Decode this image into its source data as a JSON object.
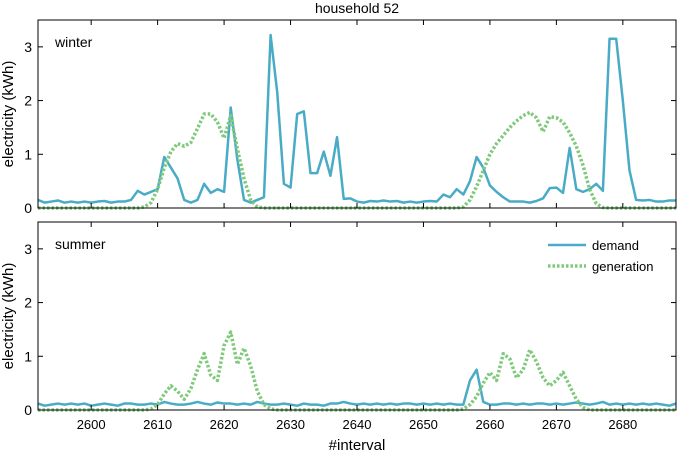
{
  "figure": {
    "title": "household 52",
    "xlabel": "#interval"
  },
  "colors": {
    "demand": "#4aabc6",
    "generation": "#7ec97a",
    "axis": "#000000",
    "background": "#ffffff"
  },
  "chart_data": [
    {
      "type": "line",
      "panel_label": "winter",
      "title": "household 52",
      "xlabel": "",
      "ylabel": "electricity (kWh)",
      "xlim": [
        2592,
        2688
      ],
      "ylim": [
        0,
        3.5
      ],
      "xticks": [
        2600,
        2610,
        2620,
        2630,
        2640,
        2650,
        2660,
        2670,
        2680
      ],
      "yticks": [
        0,
        1,
        2,
        3
      ],
      "legend": "none",
      "series": [
        {
          "name": "demand",
          "style": "solid",
          "x": [
            2592,
            2593,
            2594,
            2595,
            2596,
            2597,
            2598,
            2599,
            2600,
            2601,
            2602,
            2603,
            2604,
            2605,
            2606,
            2607,
            2608,
            2609,
            2610,
            2611,
            2612,
            2613,
            2614,
            2615,
            2616,
            2617,
            2618,
            2619,
            2620,
            2621,
            2622,
            2623,
            2624,
            2625,
            2626,
            2627,
            2628,
            2629,
            2630,
            2631,
            2632,
            2633,
            2634,
            2635,
            2636,
            2637,
            2638,
            2639,
            2640,
            2641,
            2642,
            2643,
            2644,
            2645,
            2646,
            2647,
            2648,
            2649,
            2650,
            2651,
            2652,
            2653,
            2654,
            2655,
            2656,
            2657,
            2658,
            2659,
            2660,
            2661,
            2662,
            2663,
            2664,
            2665,
            2666,
            2667,
            2668,
            2669,
            2670,
            2671,
            2672,
            2673,
            2674,
            2675,
            2676,
            2677,
            2678,
            2679,
            2680,
            2681,
            2682,
            2683,
            2684,
            2685,
            2686,
            2687,
            2688
          ],
          "values": [
            0.15,
            0.1,
            0.12,
            0.14,
            0.1,
            0.12,
            0.1,
            0.12,
            0.1,
            0.12,
            0.13,
            0.1,
            0.12,
            0.12,
            0.15,
            0.32,
            0.25,
            0.3,
            0.35,
            0.95,
            0.75,
            0.55,
            0.15,
            0.1,
            0.15,
            0.45,
            0.28,
            0.35,
            0.3,
            1.87,
            0.9,
            0.15,
            0.1,
            0.15,
            0.2,
            3.22,
            2.15,
            0.45,
            0.38,
            1.75,
            1.8,
            0.65,
            0.65,
            1.05,
            0.6,
            1.32,
            0.17,
            0.18,
            0.12,
            0.1,
            0.13,
            0.12,
            0.14,
            0.12,
            0.13,
            0.1,
            0.12,
            0.1,
            0.12,
            0.13,
            0.12,
            0.25,
            0.2,
            0.35,
            0.25,
            0.5,
            0.95,
            0.75,
            0.42,
            0.3,
            0.2,
            0.12,
            0.12,
            0.12,
            0.1,
            0.13,
            0.18,
            0.37,
            0.38,
            0.28,
            1.12,
            0.35,
            0.3,
            0.35,
            0.45,
            0.32,
            3.15,
            3.15,
            2.0,
            0.7,
            0.15,
            0.14,
            0.15,
            0.12,
            0.12,
            0.14,
            0.14
          ]
        },
        {
          "name": "generation",
          "style": "dotted",
          "x": [
            2592,
            2593,
            2594,
            2595,
            2596,
            2597,
            2598,
            2599,
            2600,
            2601,
            2602,
            2603,
            2604,
            2605,
            2606,
            2607,
            2608,
            2609,
            2610,
            2611,
            2612,
            2613,
            2614,
            2615,
            2616,
            2617,
            2618,
            2619,
            2620,
            2621,
            2622,
            2623,
            2624,
            2625,
            2626,
            2627,
            2628,
            2629,
            2630,
            2631,
            2632,
            2633,
            2634,
            2635,
            2636,
            2637,
            2638,
            2639,
            2640,
            2641,
            2642,
            2643,
            2644,
            2645,
            2646,
            2647,
            2648,
            2649,
            2650,
            2651,
            2652,
            2653,
            2654,
            2655,
            2656,
            2657,
            2658,
            2659,
            2660,
            2661,
            2662,
            2663,
            2664,
            2665,
            2666,
            2667,
            2668,
            2669,
            2670,
            2671,
            2672,
            2673,
            2674,
            2675,
            2676,
            2677,
            2678,
            2679,
            2680,
            2681,
            2682,
            2683,
            2684,
            2685,
            2686,
            2687,
            2688
          ],
          "values": [
            0,
            0,
            0,
            0,
            0,
            0,
            0,
            0,
            0,
            0,
            0,
            0,
            0,
            0,
            0,
            0,
            0.02,
            0.1,
            0.35,
            0.75,
            1.05,
            1.2,
            1.15,
            1.22,
            1.48,
            1.75,
            1.75,
            1.6,
            1.3,
            1.72,
            1.1,
            0.55,
            0.15,
            0.02,
            0,
            0,
            0,
            0,
            0,
            0,
            0,
            0,
            0,
            0,
            0,
            0,
            0,
            0,
            0,
            0,
            0,
            0,
            0,
            0,
            0,
            0,
            0,
            0,
            0,
            0,
            0,
            0,
            0,
            0,
            0.02,
            0.15,
            0.4,
            0.7,
            1.0,
            1.2,
            1.35,
            1.5,
            1.62,
            1.72,
            1.78,
            1.68,
            1.42,
            1.7,
            1.68,
            1.6,
            1.4,
            1.15,
            0.8,
            0.35,
            0.08,
            0.01,
            0,
            0,
            0,
            0,
            0,
            0,
            0,
            0,
            0,
            0,
            0
          ]
        }
      ]
    },
    {
      "type": "line",
      "panel_label": "summer",
      "title": "",
      "xlabel": "#interval",
      "ylabel": "electricity (kWh)",
      "xlim": [
        2592,
        2688
      ],
      "ylim": [
        0,
        3.5
      ],
      "xticks": [
        2600,
        2610,
        2620,
        2630,
        2640,
        2650,
        2660,
        2670,
        2680
      ],
      "yticks": [
        0,
        1,
        2,
        3
      ],
      "legend": "top-right",
      "series": [
        {
          "name": "demand",
          "style": "solid",
          "x": [
            2592,
            2593,
            2594,
            2595,
            2596,
            2597,
            2598,
            2599,
            2600,
            2601,
            2602,
            2603,
            2604,
            2605,
            2606,
            2607,
            2608,
            2609,
            2610,
            2611,
            2612,
            2613,
            2614,
            2615,
            2616,
            2617,
            2618,
            2619,
            2620,
            2621,
            2622,
            2623,
            2624,
            2625,
            2626,
            2627,
            2628,
            2629,
            2630,
            2631,
            2632,
            2633,
            2634,
            2635,
            2636,
            2637,
            2638,
            2639,
            2640,
            2641,
            2642,
            2643,
            2644,
            2645,
            2646,
            2647,
            2648,
            2649,
            2650,
            2651,
            2652,
            2653,
            2654,
            2655,
            2656,
            2657,
            2658,
            2659,
            2660,
            2661,
            2662,
            2663,
            2664,
            2665,
            2666,
            2667,
            2668,
            2669,
            2670,
            2671,
            2672,
            2673,
            2674,
            2675,
            2676,
            2677,
            2678,
            2679,
            2680,
            2681,
            2682,
            2683,
            2684,
            2685,
            2686,
            2687,
            2688
          ],
          "values": [
            0.12,
            0.08,
            0.1,
            0.12,
            0.1,
            0.12,
            0.1,
            0.12,
            0.08,
            0.1,
            0.12,
            0.1,
            0.08,
            0.12,
            0.12,
            0.1,
            0.1,
            0.12,
            0.1,
            0.15,
            0.12,
            0.1,
            0.1,
            0.12,
            0.15,
            0.12,
            0.1,
            0.14,
            0.12,
            0.12,
            0.1,
            0.12,
            0.1,
            0.15,
            0.12,
            0.1,
            0.1,
            0.12,
            0.1,
            0.08,
            0.12,
            0.1,
            0.1,
            0.08,
            0.12,
            0.12,
            0.15,
            0.12,
            0.1,
            0.12,
            0.1,
            0.12,
            0.1,
            0.12,
            0.1,
            0.12,
            0.12,
            0.1,
            0.12,
            0.1,
            0.12,
            0.1,
            0.12,
            0.1,
            0.1,
            0.55,
            0.75,
            0.15,
            0.1,
            0.1,
            0.12,
            0.12,
            0.1,
            0.12,
            0.1,
            0.12,
            0.12,
            0.1,
            0.12,
            0.1,
            0.12,
            0.14,
            0.12,
            0.1,
            0.12,
            0.15,
            0.1,
            0.12,
            0.1,
            0.12,
            0.1,
            0.12,
            0.1,
            0.12,
            0.1,
            0.08,
            0.12
          ]
        },
        {
          "name": "generation",
          "style": "dotted",
          "x": [
            2592,
            2593,
            2594,
            2595,
            2596,
            2597,
            2598,
            2599,
            2600,
            2601,
            2602,
            2603,
            2604,
            2605,
            2606,
            2607,
            2608,
            2609,
            2610,
            2611,
            2612,
            2613,
            2614,
            2615,
            2616,
            2617,
            2618,
            2619,
            2620,
            2621,
            2622,
            2623,
            2624,
            2625,
            2626,
            2627,
            2628,
            2629,
            2630,
            2631,
            2632,
            2633,
            2634,
            2635,
            2636,
            2637,
            2638,
            2639,
            2640,
            2641,
            2642,
            2643,
            2644,
            2645,
            2646,
            2647,
            2648,
            2649,
            2650,
            2651,
            2652,
            2653,
            2654,
            2655,
            2656,
            2657,
            2658,
            2659,
            2660,
            2661,
            2662,
            2663,
            2664,
            2665,
            2666,
            2667,
            2668,
            2669,
            2670,
            2671,
            2672,
            2673,
            2674,
            2675,
            2676,
            2677,
            2678,
            2679,
            2680,
            2681,
            2682,
            2683,
            2684,
            2685,
            2686,
            2687,
            2688
          ],
          "values": [
            0,
            0,
            0,
            0,
            0,
            0,
            0,
            0,
            0,
            0,
            0,
            0,
            0,
            0,
            0,
            0,
            0,
            0.02,
            0.1,
            0.3,
            0.45,
            0.35,
            0.2,
            0.4,
            0.75,
            1.05,
            0.65,
            0.55,
            1.2,
            1.45,
            0.85,
            1.15,
            0.82,
            0.35,
            0.1,
            0.02,
            0,
            0,
            0,
            0,
            0,
            0,
            0,
            0,
            0,
            0,
            0,
            0,
            0,
            0,
            0,
            0,
            0,
            0,
            0,
            0,
            0,
            0,
            0,
            0,
            0,
            0,
            0,
            0,
            0.02,
            0.1,
            0.25,
            0.5,
            0.7,
            0.55,
            1.05,
            0.95,
            0.6,
            0.75,
            1.12,
            0.9,
            0.6,
            0.45,
            0.55,
            0.7,
            0.45,
            0.2,
            0.05,
            0,
            0,
            0,
            0,
            0,
            0,
            0,
            0,
            0,
            0,
            0,
            0,
            0,
            0
          ]
        }
      ]
    }
  ]
}
